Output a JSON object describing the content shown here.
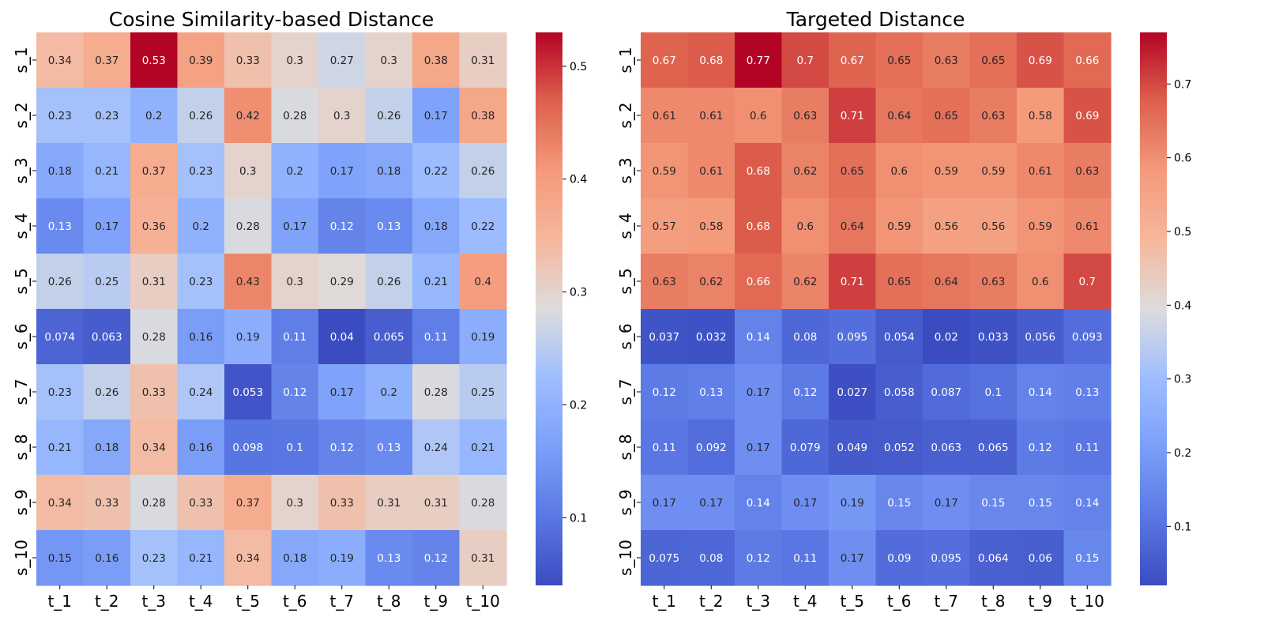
{
  "chart_data": [
    {
      "type": "heatmap",
      "title": "Cosine Similarity-based Distance",
      "xlabel": "",
      "ylabel": "",
      "x": [
        "t_1",
        "t_2",
        "t_3",
        "t_4",
        "t_5",
        "t_6",
        "t_7",
        "t_8",
        "t_9",
        "t_10"
      ],
      "y": [
        "s_1",
        "s_2",
        "s_3",
        "s_4",
        "s_5",
        "s_6",
        "s_7",
        "s_8",
        "s_9",
        "s_10"
      ],
      "values": [
        [
          0.34,
          0.37,
          0.53,
          0.39,
          0.33,
          0.3,
          0.27,
          0.3,
          0.38,
          0.31
        ],
        [
          0.23,
          0.23,
          0.2,
          0.26,
          0.42,
          0.28,
          0.3,
          0.26,
          0.17,
          0.38
        ],
        [
          0.18,
          0.21,
          0.37,
          0.23,
          0.3,
          0.2,
          0.17,
          0.18,
          0.22,
          0.26
        ],
        [
          0.13,
          0.17,
          0.36,
          0.2,
          0.28,
          0.17,
          0.12,
          0.13,
          0.18,
          0.22
        ],
        [
          0.26,
          0.25,
          0.31,
          0.23,
          0.43,
          0.3,
          0.29,
          0.26,
          0.21,
          0.4
        ],
        [
          0.074,
          0.063,
          0.28,
          0.16,
          0.19,
          0.11,
          0.04,
          0.065,
          0.11,
          0.19
        ],
        [
          0.23,
          0.26,
          0.33,
          0.24,
          0.053,
          0.12,
          0.17,
          0.2,
          0.28,
          0.25
        ],
        [
          0.21,
          0.18,
          0.34,
          0.16,
          0.098,
          0.1,
          0.12,
          0.13,
          0.24,
          0.21
        ],
        [
          0.34,
          0.33,
          0.28,
          0.33,
          0.37,
          0.3,
          0.33,
          0.31,
          0.31,
          0.28
        ],
        [
          0.15,
          0.16,
          0.23,
          0.21,
          0.34,
          0.18,
          0.19,
          0.13,
          0.12,
          0.31
        ]
      ],
      "colormap": "coolwarm",
      "vmin": 0.04,
      "vmax": 0.53,
      "colorbar_ticks": [
        0.1,
        0.2,
        0.3,
        0.4,
        0.5
      ],
      "annotations": "cell values",
      "grid": false
    },
    {
      "type": "heatmap",
      "title": "Targeted Distance",
      "xlabel": "",
      "ylabel": "",
      "x": [
        "t_1",
        "t_2",
        "t_3",
        "t_4",
        "t_5",
        "t_6",
        "t_7",
        "t_8",
        "t_9",
        "t_10"
      ],
      "y": [
        "s_1",
        "s_2",
        "s_3",
        "s_4",
        "s_5",
        "s_6",
        "s_7",
        "s_8",
        "s_9",
        "s_10"
      ],
      "values": [
        [
          0.67,
          0.68,
          0.77,
          0.7,
          0.67,
          0.65,
          0.63,
          0.65,
          0.69,
          0.66
        ],
        [
          0.61,
          0.61,
          0.6,
          0.63,
          0.71,
          0.64,
          0.65,
          0.63,
          0.58,
          0.69
        ],
        [
          0.59,
          0.61,
          0.68,
          0.62,
          0.65,
          0.6,
          0.59,
          0.59,
          0.61,
          0.63
        ],
        [
          0.57,
          0.58,
          0.68,
          0.6,
          0.64,
          0.59,
          0.56,
          0.56,
          0.59,
          0.61
        ],
        [
          0.63,
          0.62,
          0.66,
          0.62,
          0.71,
          0.65,
          0.64,
          0.63,
          0.6,
          0.7
        ],
        [
          0.037,
          0.032,
          0.14,
          0.08,
          0.095,
          0.054,
          0.02,
          0.033,
          0.056,
          0.093
        ],
        [
          0.12,
          0.13,
          0.17,
          0.12,
          0.027,
          0.058,
          0.087,
          0.1,
          0.14,
          0.13
        ],
        [
          0.11,
          0.092,
          0.17,
          0.079,
          0.049,
          0.052,
          0.063,
          0.065,
          0.12,
          0.11
        ],
        [
          0.17,
          0.17,
          0.14,
          0.17,
          0.19,
          0.15,
          0.17,
          0.15,
          0.15,
          0.14
        ],
        [
          0.075,
          0.08,
          0.12,
          0.11,
          0.17,
          0.09,
          0.095,
          0.064,
          0.06,
          0.15
        ]
      ],
      "colormap": "coolwarm",
      "vmin": 0.02,
      "vmax": 0.77,
      "colorbar_ticks": [
        0.1,
        0.2,
        0.3,
        0.4,
        0.5,
        0.6,
        0.7
      ],
      "annotations": "cell values",
      "grid": false
    }
  ]
}
